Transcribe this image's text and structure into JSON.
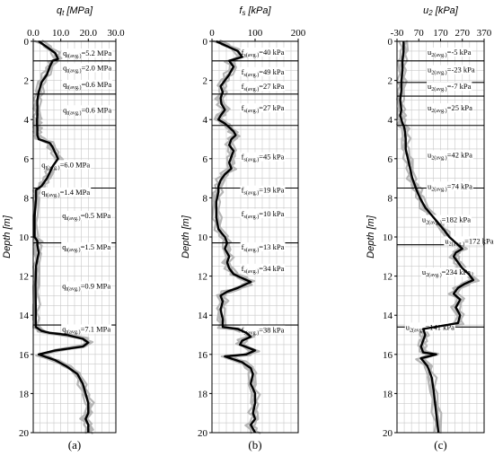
{
  "chart_data": [
    {
      "type": "line",
      "panel_label": "(a)",
      "title": "q_t [MPa]",
      "title_main": "q",
      "title_sub": "t",
      "title_rest": " [MPa]",
      "ylabel": "Depth [m]",
      "xlim": [
        0,
        30
      ],
      "ylim": [
        0,
        20
      ],
      "y_inverted": true,
      "grid": true,
      "xticks": [
        "0.0",
        "10.0",
        "20.0",
        "30.0"
      ],
      "yticks": [
        "0",
        "2",
        "4",
        "6",
        "8",
        "10",
        "12",
        "14",
        "16",
        "18",
        "20"
      ],
      "layer_boundaries": [
        1.0,
        2.7,
        4.3,
        7.5,
        10.3,
        14.5
      ],
      "series": [
        {
          "x": [
            2,
            5,
            8,
            9,
            7,
            6,
            5,
            3,
            2,
            1.5,
            1.5,
            1.5,
            1.4,
            1.4,
            1.4,
            1.5,
            1.5,
            1.5,
            1.5,
            2,
            6,
            7,
            8,
            9,
            8,
            7,
            6,
            5,
            4,
            3,
            1,
            1,
            0.5,
            0.5,
            1.5,
            1.5,
            2,
            1,
            0.8,
            0.9,
            0.9,
            0.9,
            3,
            6,
            12,
            18,
            20,
            18,
            8,
            2,
            4,
            8,
            12,
            16,
            18,
            19,
            20,
            20,
            19,
            20,
            20,
            20
          ],
          "y": [
            0,
            0.3,
            0.6,
            0.9,
            1.0,
            1.3,
            1.7,
            2.1,
            2.6,
            3.0,
            3.4,
            3.8,
            4.0,
            4.2,
            4.3,
            4.4,
            4.5,
            4.6,
            4.8,
            5.0,
            5.2,
            5.4,
            5.7,
            6.0,
            6.2,
            6.4,
            6.7,
            7.0,
            7.2,
            7.4,
            7.6,
            8.0,
            9.0,
            10.0,
            10.2,
            10.4,
            10.8,
            11.5,
            12.5,
            13.5,
            14.2,
            14.6,
            14.8,
            14.9,
            15.0,
            15.2,
            15.4,
            15.6,
            15.8,
            16.0,
            16.1,
            16.3,
            16.6,
            17.0,
            17.5,
            18.0,
            18.5,
            19.0,
            19.3,
            19.6,
            19.8,
            20.0
          ]
        }
      ],
      "annotations": [
        {
          "depth": 0.6,
          "x": 10.8,
          "lines": [
            {
              "main": "q",
              "sub": "t(avg.)",
              "rest": "=5.2 MPa"
            }
          ]
        },
        {
          "depth": 1.35,
          "x": 10.8,
          "lines": [
            {
              "main": "q",
              "sub": "t(avg.)",
              "rest": "=2.0 MPa"
            }
          ]
        },
        {
          "depth": 2.2,
          "x": 10.8,
          "lines": [
            {
              "main": "q",
              "sub": "t(avg.)",
              "rest": "=0.6 MPa"
            }
          ]
        },
        {
          "depth": 3.5,
          "x": 10.8,
          "lines": [
            {
              "main": "q",
              "sub": "t(avg.)",
              "rest": "=0.6 MPa"
            }
          ]
        },
        {
          "depth": 6.3,
          "x": 3.0,
          "lines": [
            {
              "main": "q",
              "sub": "t(avg.)",
              "rest": "=6.0 MPa"
            }
          ]
        },
        {
          "depth": 7.7,
          "x": 3.0,
          "lines": [
            {
              "main": "q",
              "sub": "t(avg.)",
              "rest": "=1.4 MPa"
            }
          ]
        },
        {
          "depth": 8.9,
          "x": 10.5,
          "lines": [
            {
              "main": "q",
              "sub": "t(avg.)",
              "rest": "=0.5 MPa"
            }
          ]
        },
        {
          "depth": 10.5,
          "x": 10.5,
          "lines": [
            {
              "main": "q",
              "sub": "t(avg.)",
              "rest": "=1.5 MPa"
            }
          ]
        },
        {
          "depth": 12.5,
          "x": 10.5,
          "lines": [
            {
              "main": "q",
              "sub": "t(avg.)",
              "rest": "=0.9 MPa"
            }
          ]
        },
        {
          "depth": 14.7,
          "x": 10.5,
          "lines": [
            {
              "main": "q",
              "sub": "t(avg.)",
              "rest": "=7.1 MPa"
            }
          ]
        }
      ]
    },
    {
      "type": "line",
      "panel_label": "(b)",
      "title": "f_s [kPa]",
      "title_main": "f",
      "title_sub": "s",
      "title_rest": " [kPa]",
      "ylabel": "Depth [m]",
      "xlim": [
        0,
        200
      ],
      "ylim": [
        0,
        20
      ],
      "y_inverted": true,
      "grid": true,
      "xticks": [
        "0",
        "100",
        "200"
      ],
      "yticks": [
        "0",
        "2",
        "4",
        "6",
        "8",
        "10",
        "12",
        "14",
        "16",
        "18",
        "20"
      ],
      "layer_boundaries": [
        1.0,
        2.7,
        4.3,
        7.5,
        10.3,
        14.5
      ],
      "series": [
        {
          "x": [
            10,
            30,
            60,
            70,
            40,
            50,
            40,
            30,
            20,
            25,
            20,
            22,
            30,
            20,
            15,
            30,
            40,
            50,
            55,
            45,
            40,
            50,
            45,
            40,
            45,
            30,
            20,
            15,
            15,
            10,
            10,
            15,
            30,
            35,
            30,
            40,
            35,
            40,
            50,
            70,
            90,
            80,
            60,
            35,
            20,
            25,
            20,
            25,
            25,
            60,
            80,
            90,
            70,
            65,
            100,
            80,
            30,
            70,
            90,
            95,
            90,
            100,
            100,
            95,
            100,
            90,
            95,
            100
          ],
          "y": [
            0,
            0.2,
            0.5,
            0.8,
            1.0,
            1.3,
            1.7,
            2.0,
            2.3,
            2.6,
            2.9,
            3.2,
            3.5,
            3.8,
            4.0,
            4.2,
            4.4,
            4.6,
            4.8,
            5.0,
            5.3,
            5.6,
            5.9,
            6.2,
            6.5,
            6.8,
            7.1,
            7.4,
            7.7,
            8.2,
            9.0,
            9.6,
            10.0,
            10.3,
            10.6,
            11.0,
            11.3,
            11.6,
            11.9,
            12.1,
            12.3,
            12.4,
            12.6,
            12.8,
            13.0,
            13.3,
            13.7,
            14.2,
            14.6,
            14.7,
            14.9,
            15.1,
            15.3,
            15.5,
            15.8,
            16.0,
            16.1,
            16.4,
            16.7,
            17.0,
            17.5,
            18.0,
            18.5,
            19.0,
            19.3,
            19.6,
            19.8,
            20.0
          ]
        }
      ],
      "annotations": [
        {
          "depth": 0.55,
          "x": 68,
          "lines": [
            {
              "main": "f",
              "sub": "s(avg.)",
              "rest": "=40 kPa"
            }
          ]
        },
        {
          "depth": 1.55,
          "x": 68,
          "lines": [
            {
              "main": "f",
              "sub": "s(avg.)",
              "rest": "=49 kPa"
            }
          ]
        },
        {
          "depth": 2.3,
          "x": 68,
          "lines": [
            {
              "main": "f",
              "sub": "s(avg.)",
              "rest": "=27 kPa"
            }
          ]
        },
        {
          "depth": 3.4,
          "x": 68,
          "lines": [
            {
              "main": "f",
              "sub": "s(avg.)",
              "rest": "=27 kPa"
            }
          ]
        },
        {
          "depth": 5.9,
          "x": 68,
          "lines": [
            {
              "main": "f",
              "sub": "s(avg.)",
              "rest": "=45 kPa"
            }
          ]
        },
        {
          "depth": 7.6,
          "x": 68,
          "lines": [
            {
              "main": "f",
              "sub": "s(avg.)",
              "rest": "=19 kPa"
            }
          ]
        },
        {
          "depth": 8.8,
          "x": 68,
          "lines": [
            {
              "main": "f",
              "sub": "s(avg.)",
              "rest": "=10 kPa"
            }
          ]
        },
        {
          "depth": 10.5,
          "x": 68,
          "lines": [
            {
              "main": "f",
              "sub": "s(avg.)",
              "rest": "=13 kPa"
            }
          ]
        },
        {
          "depth": 11.6,
          "x": 68,
          "lines": [
            {
              "main": "f",
              "sub": "s(avg.)",
              "rest": "=34 kPa"
            }
          ]
        },
        {
          "depth": 14.75,
          "x": 68,
          "lines": [
            {
              "main": "f",
              "sub": "s(avg.)",
              "rest": "=38 kPa"
            }
          ]
        }
      ]
    },
    {
      "type": "line",
      "panel_label": "(c)",
      "title": "u_2 [kPa]",
      "title_main": "u",
      "title_sub": "2",
      "title_rest": " [kPa]",
      "ylabel": "Depth [m]",
      "xlim": [
        -30,
        370
      ],
      "ylim": [
        0,
        20
      ],
      "y_inverted": true,
      "grid": true,
      "xticks": [
        "-30",
        "70",
        "170",
        "270",
        "370"
      ],
      "yticks": [
        "0",
        "2",
        "4",
        "6",
        "8",
        "10",
        "12",
        "14",
        "16",
        "18",
        "20"
      ],
      "layer_boundaries": [
        1.0,
        2.1,
        2.8,
        4.3,
        7.5,
        10.4,
        14.6
      ],
      "series": [
        {
          "x": [
            0,
            0,
            -5,
            -5,
            -10,
            -10,
            -15,
            -10,
            -15,
            -10,
            -5,
            0,
            5,
            10,
            10,
            20,
            30,
            40,
            50,
            60,
            75,
            100,
            130,
            160,
            190,
            210,
            230,
            250,
            270,
            240,
            230,
            250,
            270,
            300,
            320,
            280,
            250,
            230,
            260,
            240,
            260,
            250,
            90,
            100,
            90,
            80,
            90,
            150,
            80,
            110,
            130,
            140,
            150,
            160
          ],
          "y": [
            0,
            0.5,
            1.0,
            1.5,
            2.0,
            2.5,
            3.0,
            3.5,
            3.8,
            4.0,
            4.2,
            4.3,
            4.5,
            5.0,
            5.5,
            6.0,
            6.5,
            7.0,
            7.3,
            7.6,
            8.0,
            8.5,
            8.9,
            9.3,
            9.7,
            10.0,
            10.2,
            10.4,
            10.6,
            10.8,
            11.0,
            11.3,
            11.6,
            11.9,
            12.2,
            12.4,
            12.6,
            12.9,
            13.2,
            13.6,
            14.0,
            14.4,
            14.7,
            15.0,
            15.3,
            15.6,
            15.9,
            16.0,
            16.2,
            16.6,
            17.2,
            18.0,
            19.0,
            20.0
          ]
        }
      ],
      "annotations": [
        {
          "depth": 0.55,
          "x": 110,
          "lines": [
            {
              "main": "u",
              "sub": "2(avg.)",
              "rest": "=-5 kPa"
            }
          ]
        },
        {
          "depth": 1.45,
          "x": 110,
          "lines": [
            {
              "main": "u",
              "sub": "2(avg.)",
              "rest": "=-23 kPa"
            }
          ]
        },
        {
          "depth": 2.3,
          "x": 110,
          "lines": [
            {
              "main": "u",
              "sub": "2(avg.)",
              "rest": "=-7 kPa"
            }
          ]
        },
        {
          "depth": 3.4,
          "x": 110,
          "lines": [
            {
              "main": "u",
              "sub": "2(avg.)",
              "rest": "=25 kPa"
            }
          ]
        },
        {
          "depth": 5.8,
          "x": 110,
          "lines": [
            {
              "main": "u",
              "sub": "2(avg.)",
              "rest": "=42 kPa"
            }
          ]
        },
        {
          "depth": 7.4,
          "x": 110,
          "lines": [
            {
              "main": "u",
              "sub": "2(avg.)",
              "rest": "=74 kPa"
            }
          ]
        },
        {
          "depth": 9.1,
          "x": 85,
          "lines": [
            {
              "main": "u",
              "sub": "2(avg.)",
              "rest": "=182 kPa"
            }
          ]
        },
        {
          "depth": 10.2,
          "x": 190,
          "lines": [
            {
              "main": "u",
              "sub": "2(avg.)",
              "rest": "=172 kPa"
            }
          ]
        },
        {
          "depth": 11.8,
          "x": 85,
          "lines": [
            {
              "main": "u",
              "sub": "2(avg.)",
              "rest": "=234 kPa"
            }
          ]
        },
        {
          "depth": 14.6,
          "x": 10,
          "lines": [
            {
              "main": "u",
              "sub": "2(avg.)",
              "rest": "=141 kPa"
            }
          ]
        }
      ]
    }
  ]
}
